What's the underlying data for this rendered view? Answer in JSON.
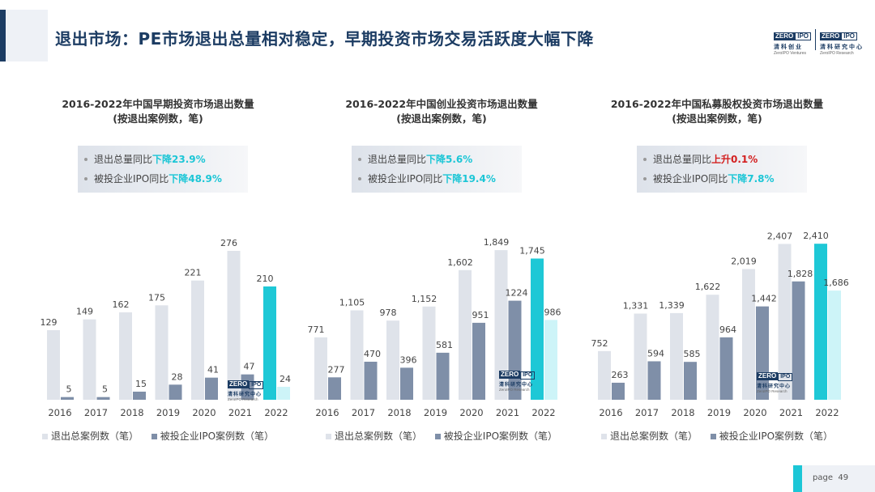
{
  "header": {
    "title": "退出市场：PE市场退出总量相对稳定，早期投资市场交易活跃度大幅下降"
  },
  "logos": {
    "left": {
      "mark_a": "ZERO",
      "mark_b": "IPO",
      "cn": "清科创业",
      "en": "ZeroIPO Ventures"
    },
    "right": {
      "mark_a": "ZERO",
      "mark_b": "IPO",
      "cn": "清科研究中心",
      "en": "ZeroIPO Research"
    }
  },
  "watermark": {
    "mark_a": "ZERO",
    "mark_b": "IPO",
    "cn": "清科研究中心",
    "en": "ZeroIPO Research"
  },
  "colors": {
    "total": "#dfe3ea",
    "ipo": "#7f8fa8",
    "total_2022": "#1ec8d6",
    "ipo_2022": "#cdf4f8",
    "up": "#d31f1f",
    "down": "#1cc6d6"
  },
  "legend": {
    "total": "退出总案例数（笔）",
    "ipo": "被投企业IPO案例数（笔）"
  },
  "panels": [
    {
      "title_line1": "2016-2022年中国早期投资市场退出数量",
      "title_line2": "(按退出案例数，笔)",
      "callout": [
        {
          "prefix": "退出总量同比",
          "change": "下降23.9%",
          "dir": "down"
        },
        {
          "prefix": "被投企业IPO同比",
          "change": "下降48.9%",
          "dir": "down"
        }
      ]
    },
    {
      "title_line1": "2016-2022年中国创业投资市场退出数量",
      "title_line2": "(按退出案例数，笔)",
      "callout": [
        {
          "prefix": "退出总量同比",
          "change": "下降5.6%",
          "dir": "down"
        },
        {
          "prefix": "被投企业IPO同比",
          "change": "下降19.4%",
          "dir": "down"
        }
      ]
    },
    {
      "title_line1": "2016-2022年中国私募股权投资市场退出数量",
      "title_line2": "(按退出案例数，笔)",
      "callout": [
        {
          "prefix": "退出总量同比",
          "change": "上升0.1%",
          "dir": "up"
        },
        {
          "prefix": "被投企业IPO同比",
          "change": "下降7.8%",
          "dir": "down"
        }
      ]
    }
  ],
  "chart_data": [
    {
      "type": "bar",
      "title": "2016-2022年中国早期投资市场退出数量",
      "subtitle": "(按退出案例数，笔)",
      "categories": [
        "2016",
        "2017",
        "2018",
        "2019",
        "2020",
        "2021",
        "2022"
      ],
      "series": [
        {
          "name": "退出总案例数（笔）",
          "values": [
            129,
            149,
            162,
            175,
            221,
            276,
            210
          ]
        },
        {
          "name": "被投企业IPO案例数（笔）",
          "values": [
            5,
            5,
            15,
            28,
            41,
            47,
            24
          ]
        }
      ],
      "ylim": [
        0,
        300
      ],
      "grid": false,
      "legend": "bottom"
    },
    {
      "type": "bar",
      "title": "2016-2022年中国创业投资市场退出数量",
      "subtitle": "(按退出案例数，笔)",
      "categories": [
        "2016",
        "2017",
        "2018",
        "2019",
        "2020",
        "2021",
        "2022"
      ],
      "series": [
        {
          "name": "退出总案例数（笔）",
          "values": [
            771,
            1105,
            978,
            1152,
            1602,
            1849,
            1745
          ]
        },
        {
          "name": "被投企业IPO案例数（笔）",
          "values": [
            277,
            470,
            396,
            581,
            951,
            1224,
            986
          ]
        }
      ],
      "display_labels": {
        "total": [
          "771",
          "1,105",
          "978",
          "1,152",
          "1,602",
          "1,849",
          "1,745"
        ],
        "ipo": [
          "277",
          "470",
          "396",
          "581",
          "951",
          "1224",
          "986"
        ]
      },
      "ylim": [
        0,
        2000
      ],
      "grid": false,
      "legend": "bottom"
    },
    {
      "type": "bar",
      "title": "2016-2022年中国私募股权投资市场退出数量",
      "subtitle": "(按退出案例数，笔)",
      "categories": [
        "2016",
        "2017",
        "2018",
        "2019",
        "2020",
        "2021",
        "2022"
      ],
      "series": [
        {
          "name": "退出总案例数（笔）",
          "values": [
            752,
            1331,
            1339,
            1622,
            2019,
            2407,
            2410
          ]
        },
        {
          "name": "被投企业IPO案例数（笔）",
          "values": [
            263,
            594,
            585,
            964,
            1442,
            1828,
            1686
          ]
        }
      ],
      "display_labels": {
        "total": [
          "752",
          "1,331",
          "1,339",
          "1,622",
          "2,019",
          "2,407",
          "2,410"
        ],
        "ipo": [
          "263",
          "594",
          "585",
          "964",
          "1,442",
          "1,828",
          "1,686"
        ]
      },
      "ylim": [
        0,
        2500
      ],
      "grid": false,
      "legend": "bottom"
    }
  ],
  "footer": {
    "page_label": "page",
    "page_number": "49"
  }
}
